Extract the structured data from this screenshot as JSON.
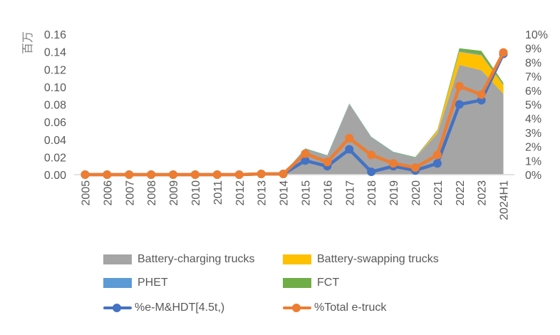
{
  "chart_data": {
    "type": "area",
    "title": "",
    "xlabel": "",
    "ylabel": "百万",
    "y2label": "",
    "categories": [
      "2005",
      "2006",
      "2007",
      "2008",
      "2009",
      "2010",
      "2011",
      "2012",
      "2013",
      "2014",
      "2015",
      "2016",
      "2017",
      "2018",
      "2019",
      "2020",
      "2021",
      "2022",
      "2023",
      "2024H1"
    ],
    "ylim": [
      0,
      0.16
    ],
    "y_ticks": [
      "0.00",
      "0.02",
      "0.04",
      "0.06",
      "0.08",
      "0.10",
      "0.12",
      "0.14",
      "0.16"
    ],
    "y2lim": [
      0,
      0.1
    ],
    "y2_ticks": [
      "0%",
      "1%",
      "2%",
      "3%",
      "4%",
      "5%",
      "6%",
      "7%",
      "8%",
      "9%",
      "10%"
    ],
    "grid": false,
    "legend_position": "bottom",
    "stacked_area_series": [
      {
        "name": "Battery-charging trucks",
        "color": "#a5a5a5",
        "values": [
          0,
          0,
          0,
          0,
          0,
          0,
          0,
          0.0005,
          0.0008,
          0.001,
          0.029,
          0.021,
          0.08,
          0.042,
          0.025,
          0.019,
          0.047,
          0.125,
          0.119,
          0.092
        ]
      },
      {
        "name": "Battery-swapping trucks",
        "color": "#ffc000",
        "values": [
          0,
          0,
          0,
          0,
          0,
          0,
          0,
          0,
          0,
          0,
          0,
          0,
          0,
          0,
          0,
          0,
          0.003,
          0.015,
          0.017,
          0.01
        ]
      },
      {
        "name": "PHET",
        "color": "#5b9bd5",
        "values": [
          0,
          0,
          0,
          0,
          0,
          0,
          0,
          0,
          0,
          0,
          0.0005,
          0.0005,
          0.0005,
          0.0005,
          0.0005,
          0.0003,
          0.0005,
          0.001,
          0.001,
          0.0005
        ]
      },
      {
        "name": "FCT",
        "color": "#70ad47",
        "values": [
          0,
          0,
          0,
          0,
          0,
          0,
          0,
          0,
          0,
          0,
          0.0005,
          0.0005,
          0.0005,
          0.0005,
          0.0005,
          0.0007,
          0.0005,
          0.003,
          0.004,
          0.002
        ]
      }
    ],
    "line_series": [
      {
        "name": "%e-M&HDT[4.5t,)",
        "color": "#4472c4",
        "axis": "right",
        "values": [
          0,
          0,
          0,
          0,
          0,
          0,
          0,
          0,
          0.0005,
          0.0005,
          0.01,
          0.006,
          0.018,
          0.002,
          0.006,
          0.003,
          0.008,
          0.05,
          0.053,
          0.086
        ]
      },
      {
        "name": "%Total e-truck",
        "color": "#ed7d31",
        "axis": "right",
        "values": [
          0,
          0,
          0,
          0,
          0,
          0,
          0,
          0,
          0.0005,
          0.0005,
          0.015,
          0.009,
          0.026,
          0.014,
          0.008,
          0.005,
          0.014,
          0.063,
          0.057,
          0.087
        ]
      }
    ]
  },
  "legend": {
    "items": [
      {
        "label": "Battery-charging trucks",
        "type": "area",
        "color": "#a5a5a5"
      },
      {
        "label": "Battery-swapping trucks",
        "type": "area",
        "color": "#ffc000"
      },
      {
        "label": "PHET",
        "type": "area",
        "color": "#5b9bd5"
      },
      {
        "label": "FCT",
        "type": "area",
        "color": "#70ad47"
      },
      {
        "label": "%e-M&HDT[4.5t,)",
        "type": "line",
        "color": "#4472c4"
      },
      {
        "label": "%Total e-truck",
        "type": "line",
        "color": "#ed7d31"
      }
    ]
  }
}
